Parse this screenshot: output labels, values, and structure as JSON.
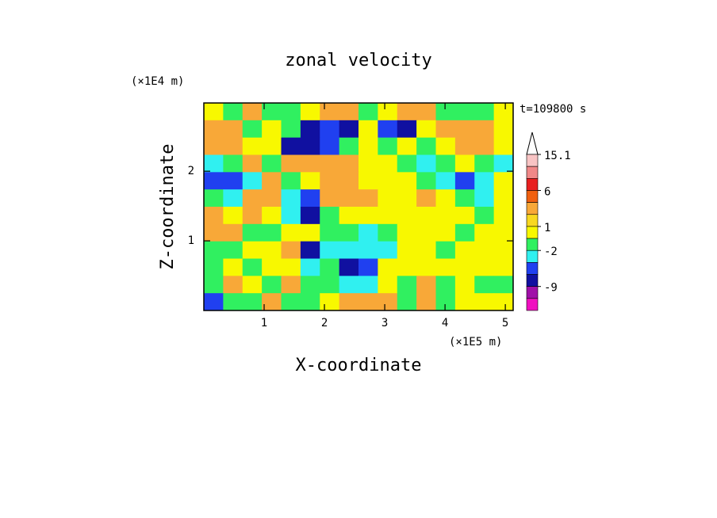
{
  "chart_data": {
    "type": "contour",
    "title": "zonal velocity",
    "xlabel": "X-coordinate",
    "ylabel": "Z-coordinate",
    "x_multiplier": "(×1E5 m)",
    "y_multiplier": "(×1E4 m)",
    "time_label": "t=109800 s",
    "xlim": [
      0,
      5.13
    ],
    "ylim": [
      0,
      2.98
    ],
    "xticks": [
      1,
      2,
      3,
      4,
      5
    ],
    "yticks": [
      1,
      2
    ],
    "z": [
      [
        0.5,
        -1,
        3,
        -1,
        -1,
        0.5,
        3,
        3,
        -1,
        0.5,
        3,
        3,
        -1,
        -1,
        -1,
        0.5
      ],
      [
        3,
        3,
        -1,
        0.5,
        -1,
        -7.5,
        -5,
        -7.5,
        0.5,
        -5,
        -7.5,
        0.5,
        3,
        3,
        3,
        0.5
      ],
      [
        3,
        3,
        0.5,
        0.5,
        -7.5,
        -7.5,
        -5,
        -1,
        0.5,
        -1,
        0.5,
        -1,
        0.5,
        3,
        3,
        0.5
      ],
      [
        -3,
        -1,
        3,
        -1,
        3,
        3,
        3,
        3,
        0.5,
        0.5,
        -1,
        -3,
        -1,
        0.5,
        -1,
        -3
      ],
      [
        -5,
        -5,
        -3,
        3,
        -1,
        0.5,
        3,
        3,
        0.5,
        0.5,
        0.5,
        -1,
        -3,
        -5,
        -3,
        0.5
      ],
      [
        -1,
        -3,
        3,
        3,
        -3,
        -5,
        3,
        3,
        3,
        0.5,
        0.5,
        3,
        0.5,
        -1,
        -3,
        0.5
      ],
      [
        3,
        0.5,
        3,
        0.5,
        -3,
        -7.5,
        -1,
        0.5,
        0.5,
        0.5,
        0.5,
        0.5,
        0.5,
        0.5,
        -1,
        0.5
      ],
      [
        3,
        3,
        -1,
        -1,
        0.5,
        0.5,
        -1,
        -1,
        -3,
        -1,
        0.5,
        0.5,
        0.5,
        -1,
        0.5,
        0.5
      ],
      [
        -1,
        -1,
        0.5,
        0.5,
        3,
        -7.5,
        -3,
        -3,
        -3,
        -3,
        0.5,
        0.5,
        -1,
        0.5,
        0.5,
        0.5
      ],
      [
        -1,
        0.5,
        -1,
        0.5,
        0.5,
        -3,
        -1,
        -7.5,
        -5,
        0.5,
        0.5,
        0.5,
        0.5,
        0.5,
        0.5,
        0.5
      ],
      [
        -1,
        3,
        0.5,
        -1,
        3,
        -1,
        -1,
        -3,
        -3,
        0.5,
        -1,
        3,
        -1,
        0.5,
        -1,
        -1
      ],
      [
        -5,
        -1,
        -1,
        3,
        -1,
        -1,
        0.5,
        3,
        3,
        3,
        -1,
        3,
        -1,
        0.5,
        0.5,
        0.5
      ]
    ],
    "levels": [
      15.1,
      12,
      9,
      6,
      4,
      2,
      1,
      0,
      -2,
      -4,
      -6,
      -9,
      -12,
      -15
    ],
    "colors": [
      "#f8c4c4",
      "#f08888",
      "#e82020",
      "#f06010",
      "#f8a838",
      "#f8d820",
      "#f8f800",
      "#30f060",
      "#30f0f0",
      "#2040f0",
      "#1010a0",
      "#a010a8",
      "#f010c0"
    ],
    "colorbar_ticks": [
      15.1,
      6,
      1,
      -2,
      -9
    ]
  }
}
